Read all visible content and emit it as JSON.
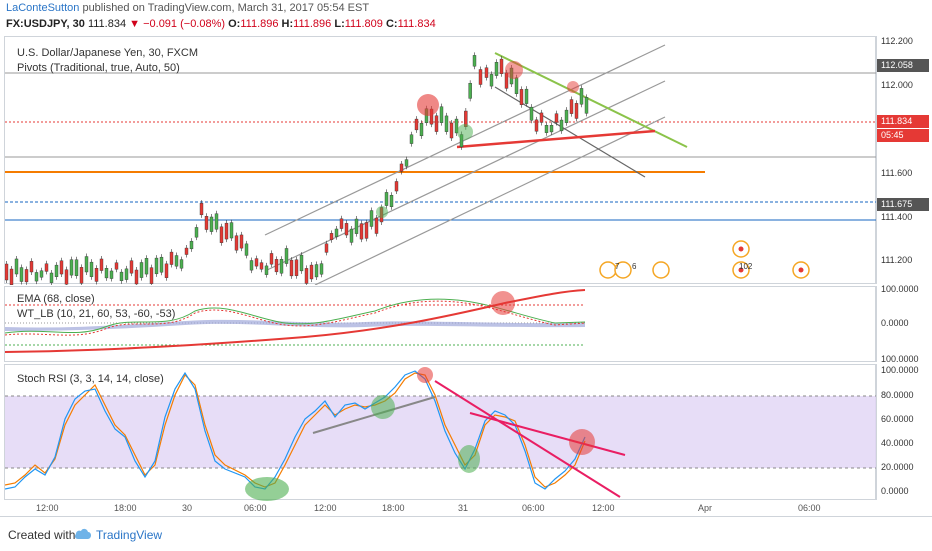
{
  "header": {
    "author": "LaConteSutton",
    "published_text": " published on TradingView.com, March 31, 2017 05:54 EST",
    "symbol": "FX:USDJPY, 30",
    "last": "111.834",
    "change": "−0.091 (−0.08%)",
    "o_label": "O:",
    "o_val": "111.896",
    "h_label": "H:",
    "h_val": "111.896",
    "l_label": "L:",
    "l_val": "111.809",
    "c_label": "C:",
    "c_val": "111.834"
  },
  "main_pane": {
    "title": "U.S. Dollar/Japanese Yen, 30, FXCM",
    "indicator": "Pivots (Traditional, true, Auto, 50)",
    "axis": [
      "112.200",
      "112.000",
      "111.600",
      "111.400",
      "111.200"
    ],
    "price_tag": "111.834",
    "time_tag": "05:45",
    "level1_tag": "112.058",
    "level2_tag": "111.675",
    "event_labels": [
      "7",
      "6",
      "102"
    ]
  },
  "ema_pane": {
    "title1": "EMA (68, close)",
    "title2": "WT_LB (10, 21, 60, 53, -60, -53)",
    "axis": [
      "100.0000",
      "0.0000",
      "100.0000"
    ]
  },
  "stoch_pane": {
    "title": "Stoch RSI (3, 3, 14, 14, close)",
    "axis": [
      "100.0000",
      "80.0000",
      "60.0000",
      "40.0000",
      "20.0000",
      "0.0000"
    ]
  },
  "time_axis": [
    "12:00",
    "18:00",
    "30",
    "06:00",
    "12:00",
    "18:00",
    "31",
    "06:00",
    "12:00",
    "Apr",
    "06:00"
  ],
  "footer": {
    "created_with": "Created with",
    "brand": "TradingView"
  },
  "colors": {
    "up": "#4caf50",
    "down": "#e53935",
    "accent": "#2a75c7",
    "orange": "#f57c00"
  }
}
